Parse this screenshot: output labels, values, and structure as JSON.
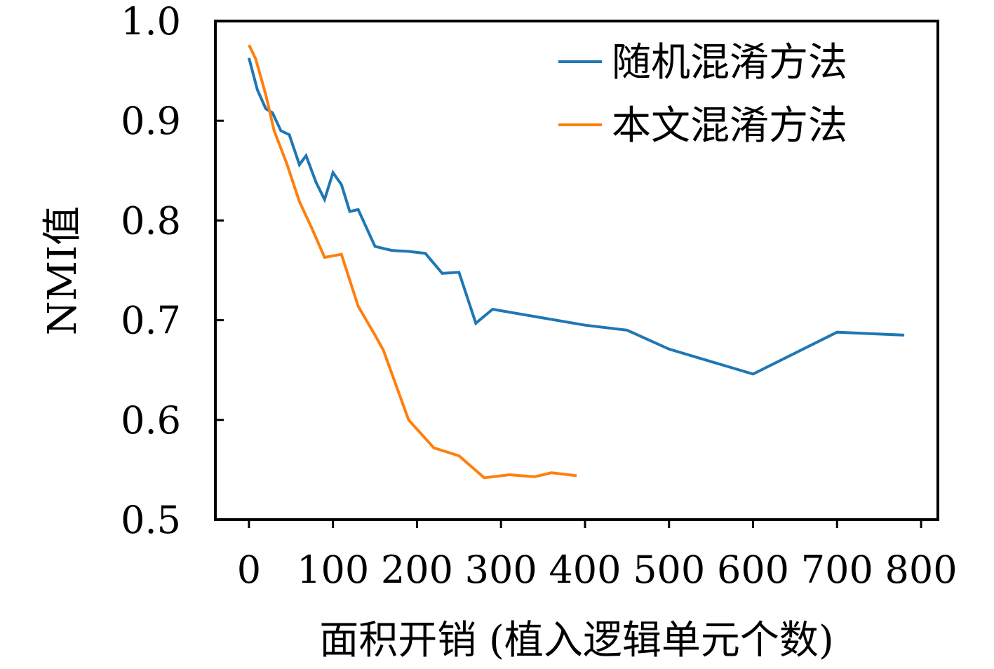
{
  "chart_data": {
    "type": "line",
    "title": "",
    "xlabel": "面积开销 (植入逻辑单元个数)",
    "ylabel": "NMI值",
    "xlim": [
      -40,
      820
    ],
    "ylim": [
      0.5,
      1.0
    ],
    "xticks": [
      0,
      100,
      200,
      300,
      400,
      500,
      600,
      700,
      800
    ],
    "xtick_labels": [
      "0",
      "100",
      "200",
      "300",
      "400",
      "500",
      "600",
      "700",
      "800"
    ],
    "yticks": [
      0.5,
      0.6,
      0.7,
      0.8,
      0.9,
      1.0
    ],
    "ytick_labels": [
      "0.5",
      "0.6",
      "0.7",
      "0.8",
      "0.9",
      "1.0"
    ],
    "grid": false,
    "legend_position": "top-right",
    "series": [
      {
        "name": "随机混淆方法",
        "color": "#1f77b4",
        "x": [
          0,
          10,
          20,
          28,
          38,
          48,
          60,
          68,
          80,
          90,
          100,
          110,
          120,
          130,
          150,
          170,
          190,
          210,
          230,
          250,
          270,
          290,
          400,
          450,
          500,
          600,
          700,
          780
        ],
        "y": [
          0.963,
          0.931,
          0.912,
          0.908,
          0.89,
          0.886,
          0.856,
          0.865,
          0.838,
          0.821,
          0.848,
          0.836,
          0.809,
          0.811,
          0.774,
          0.77,
          0.769,
          0.767,
          0.747,
          0.748,
          0.697,
          0.711,
          0.695,
          0.69,
          0.671,
          0.646,
          0.688,
          0.685
        ]
      },
      {
        "name": "本文混淆方法",
        "color": "#ff7f0e",
        "x": [
          0,
          8,
          20,
          30,
          45,
          60,
          75,
          90,
          110,
          130,
          150,
          160,
          190,
          220,
          250,
          280,
          310,
          340,
          360,
          390
        ],
        "y": [
          0.976,
          0.962,
          0.926,
          0.89,
          0.857,
          0.819,
          0.792,
          0.763,
          0.766,
          0.714,
          0.685,
          0.67,
          0.6,
          0.572,
          0.564,
          0.542,
          0.545,
          0.543,
          0.547,
          0.544
        ]
      }
    ]
  }
}
